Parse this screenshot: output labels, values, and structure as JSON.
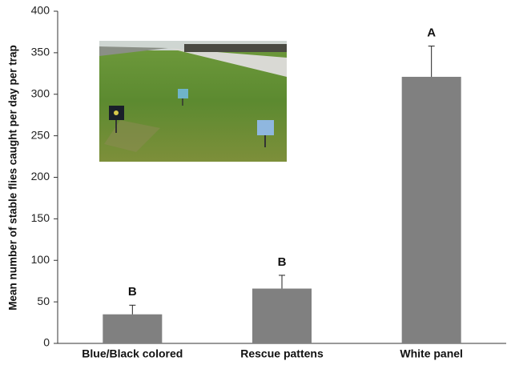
{
  "chart_data": {
    "type": "bar",
    "y_label": "Mean number of stable flies caught per day per trap",
    "categories": [
      "Blue/Black colored",
      "Rescue pattens",
      "White panel"
    ],
    "values": [
      35,
      66,
      321
    ],
    "errors": [
      11,
      16,
      37
    ],
    "annotations": [
      "B",
      "B",
      "A"
    ],
    "color": "#808080",
    "ylim": [
      0,
      400
    ],
    "yticks": [
      0,
      50,
      100,
      150,
      200,
      250,
      300,
      350,
      400
    ],
    "grid": false
  }
}
